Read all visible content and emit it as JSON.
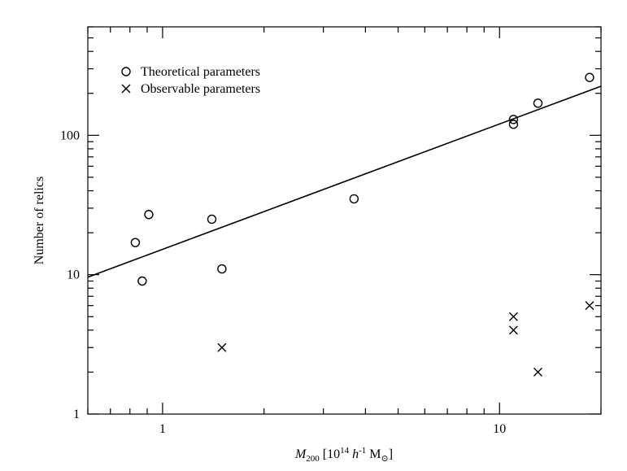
{
  "chart_data": {
    "type": "scatter",
    "title": "",
    "xlabel": {
      "symbol": "M",
      "subscript": "200",
      "bracket_open": " [10",
      "exponent": "14",
      "h_part": " h",
      "h_exponent": "-1",
      "unit": " M",
      "unit_subscript": "⊙",
      "bracket_close": "]"
    },
    "ylabel": "Number of relics",
    "x_scale": "log",
    "y_scale": "log",
    "xlim": [
      0.6,
      20
    ],
    "ylim": [
      1,
      600
    ],
    "x_ticks": [
      {
        "value": 1,
        "label": "1"
      },
      {
        "value": 10,
        "label": "10"
      }
    ],
    "y_ticks": [
      {
        "value": 1,
        "label": "1"
      },
      {
        "value": 10,
        "label": "10"
      },
      {
        "value": 100,
        "label": "100"
      }
    ],
    "grid": false,
    "legend_position": "top-left",
    "series": [
      {
        "name": "Theoretical parameters",
        "marker": "circle",
        "points": [
          {
            "x": 0.83,
            "y": 17
          },
          {
            "x": 0.87,
            "y": 9
          },
          {
            "x": 0.91,
            "y": 27
          },
          {
            "x": 1.4,
            "y": 25
          },
          {
            "x": 1.5,
            "y": 11
          },
          {
            "x": 3.7,
            "y": 35
          },
          {
            "x": 11.0,
            "y": 120
          },
          {
            "x": 11.0,
            "y": 130
          },
          {
            "x": 13.0,
            "y": 170
          },
          {
            "x": 18.5,
            "y": 260
          }
        ]
      },
      {
        "name": "Observable parameters",
        "marker": "x",
        "points": [
          {
            "x": 1.5,
            "y": 3
          },
          {
            "x": 11.0,
            "y": 5
          },
          {
            "x": 11.0,
            "y": 4
          },
          {
            "x": 13.0,
            "y": 2
          },
          {
            "x": 18.5,
            "y": 6
          }
        ]
      }
    ],
    "fit_line": {
      "points": [
        {
          "x": 0.6,
          "y": 9.6
        },
        {
          "x": 20,
          "y": 225
        }
      ]
    },
    "colors": {
      "ink": "#000000",
      "background": "#ffffff"
    }
  }
}
